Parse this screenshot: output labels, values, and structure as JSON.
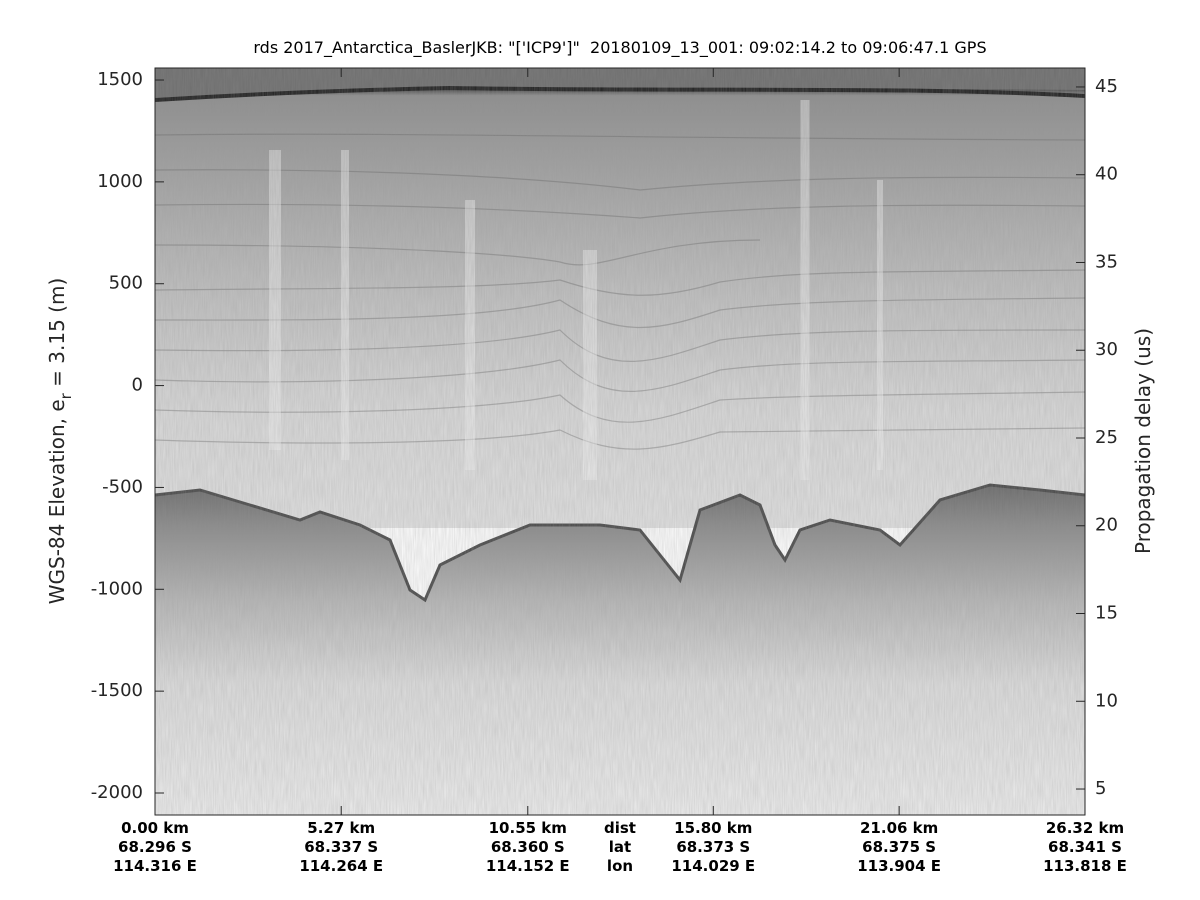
{
  "chart_data": {
    "type": "image",
    "title": "rds 2017_Antarctica_BaslerJKB: \"['ICP9']\"  20180109_13_001: 09:02:14.2 to 09:06:47.1 GPS",
    "ylabel": {
      "text": "WGS-84 Elevation, e",
      "subscript": "r",
      "rest": " = 3.15 (m)"
    },
    "y2label": "Propagation delay (us)",
    "ylim": [
      -2108,
      1559
    ],
    "yticks": [
      1500,
      1000,
      500,
      0,
      -500,
      -1000,
      -1500,
      -2000
    ],
    "y2lim": [
      3.52,
      46.08
    ],
    "y2ticks": [
      5,
      10,
      15,
      20,
      25,
      30,
      35,
      40,
      45
    ],
    "xlim": [
      0,
      26.32
    ],
    "xticks": [
      {
        "value": 0,
        "label": "0.00 km"
      },
      {
        "value": 5.27,
        "label": "5.27 km"
      },
      {
        "value": 10.55,
        "label": "10.55 km"
      },
      {
        "value": 15.8,
        "label": "15.80 km"
      },
      {
        "value": 21.06,
        "label": "21.06 km"
      },
      {
        "value": 26.32,
        "label": "26.32 km"
      }
    ],
    "xtick_lat": [
      "68.296 S",
      "68.337 S",
      "68.360 S",
      "68.373 S",
      "68.375 S",
      "68.341 S"
    ],
    "xtick_lon": [
      "114.316 E",
      "114.264 E",
      "114.152 E",
      "114.029 E",
      "113.904 E",
      "113.818 E"
    ],
    "xtick_row_labels": [
      "dist",
      "lat",
      "lon"
    ]
  }
}
